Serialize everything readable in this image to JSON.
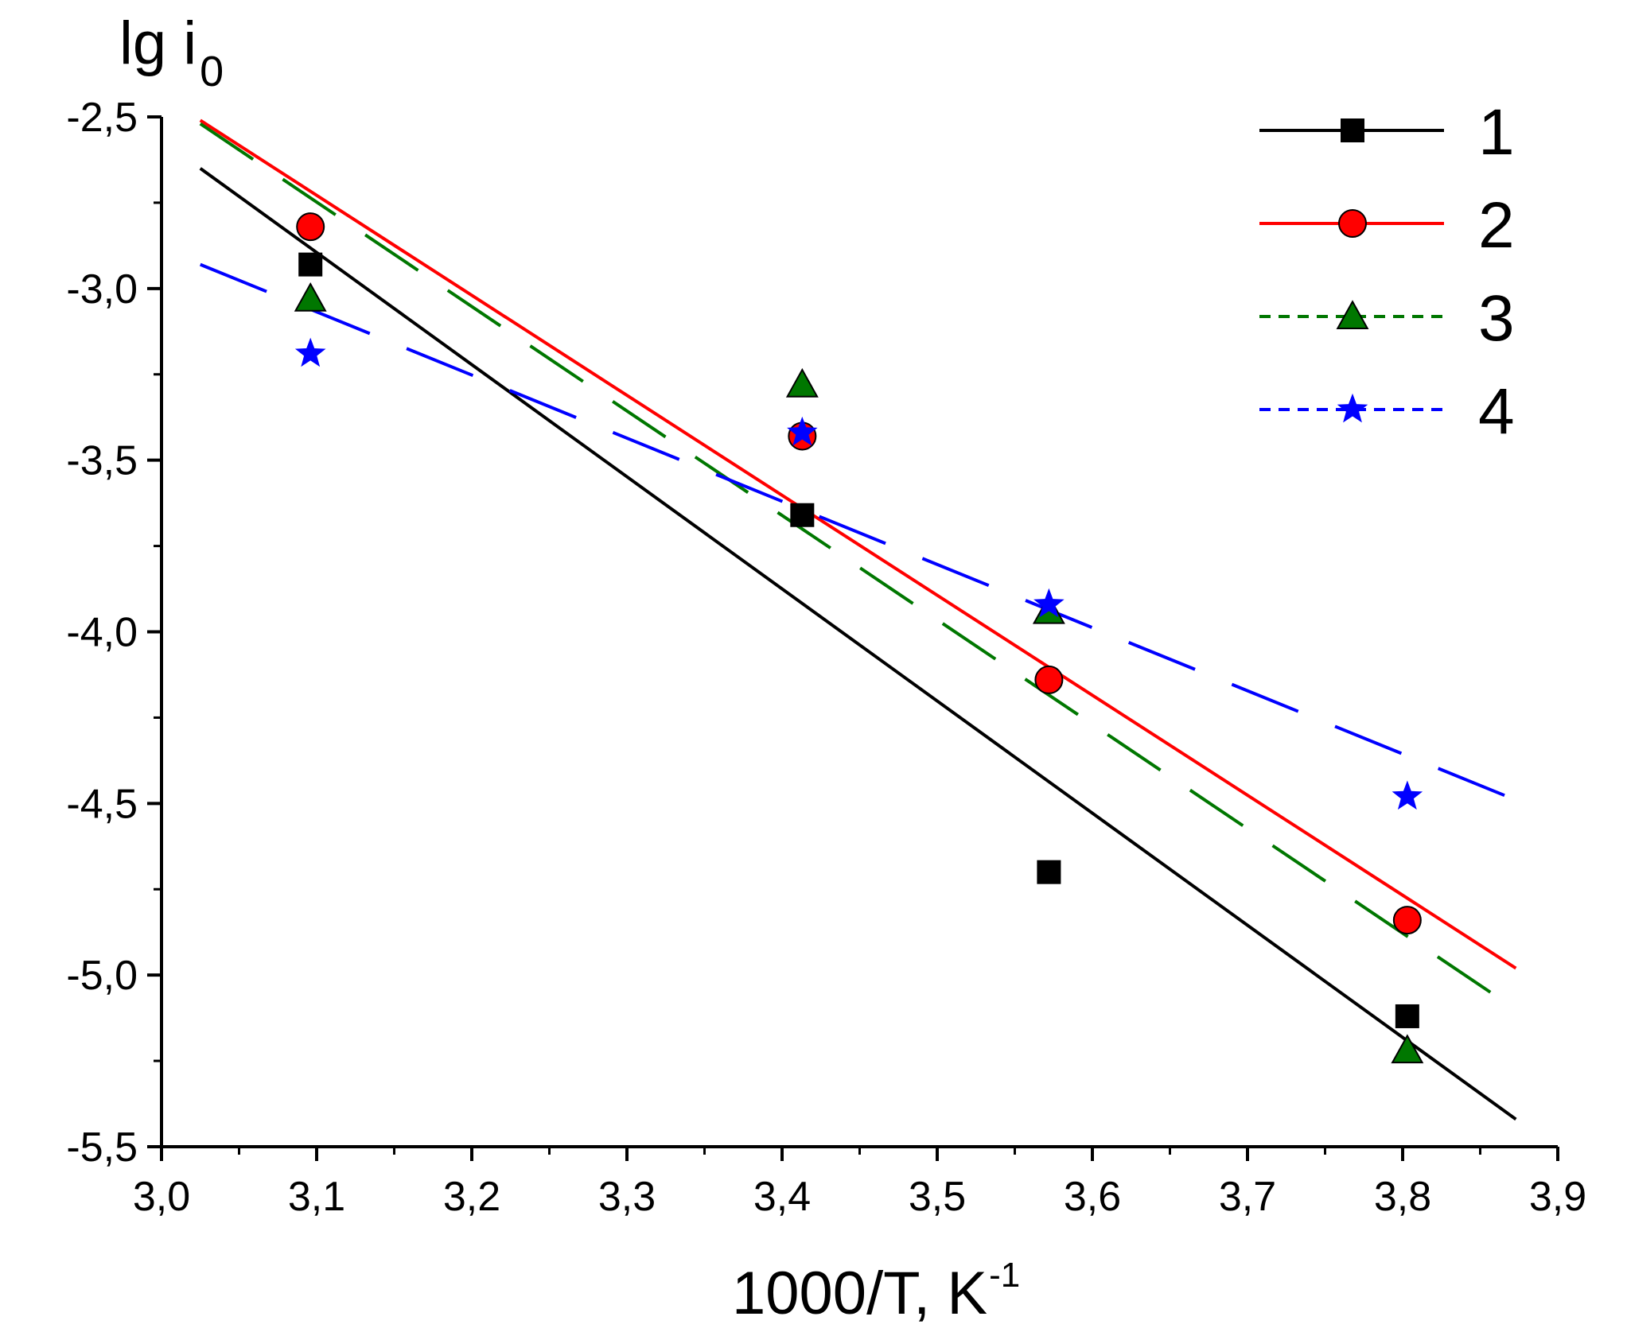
{
  "chart_data": {
    "type": "scatter",
    "xlabel": {
      "main": "1000/T, K",
      "sup": "-1"
    },
    "ylabel": {
      "main": "lg i",
      "sub": "0"
    },
    "xlim": [
      3.0,
      3.9
    ],
    "ylim": [
      -5.5,
      -2.5
    ],
    "x_ticks": [
      "3,0",
      "3,1",
      "3,2",
      "3,3",
      "3,4",
      "3,5",
      "3,6",
      "3,7",
      "3,8",
      "3,9"
    ],
    "y_ticks": [
      "-2,5",
      "-3,0",
      "-3,5",
      "-4,0",
      "-4,5",
      "-5,0",
      "-5,5"
    ],
    "grid": false,
    "legend_position": "top-right",
    "series": [
      {
        "name": "1",
        "color": "#000000",
        "marker": "square",
        "line_style": "solid",
        "points": [
          [
            3.096,
            -2.93
          ],
          [
            3.413,
            -3.66
          ],
          [
            3.572,
            -4.7
          ],
          [
            3.803,
            -5.12
          ]
        ],
        "fit": [
          [
            3.025,
            -2.65
          ],
          [
            3.873,
            -5.42
          ]
        ]
      },
      {
        "name": "2",
        "color": "#ff0000",
        "marker": "circle",
        "line_style": "solid",
        "points": [
          [
            3.096,
            -2.82
          ],
          [
            3.413,
            -3.43
          ],
          [
            3.572,
            -4.14
          ],
          [
            3.803,
            -4.84
          ]
        ],
        "fit": [
          [
            3.025,
            -2.51
          ],
          [
            3.873,
            -4.98
          ]
        ]
      },
      {
        "name": "3",
        "color": "#007700",
        "marker": "triangle",
        "line_style": "dashed",
        "points": [
          [
            3.096,
            -3.03
          ],
          [
            3.413,
            -3.28
          ],
          [
            3.572,
            -3.94
          ],
          [
            3.803,
            -5.22
          ]
        ],
        "fit": [
          [
            3.025,
            -2.52
          ],
          [
            3.873,
            -5.1
          ]
        ]
      },
      {
        "name": "4",
        "color": "#0000ff",
        "marker": "star",
        "line_style": "dashed",
        "points": [
          [
            3.096,
            -3.19
          ],
          [
            3.413,
            -3.42
          ],
          [
            3.572,
            -3.92
          ],
          [
            3.803,
            -4.48
          ]
        ],
        "fit": [
          [
            3.025,
            -2.93
          ],
          [
            3.873,
            -4.49
          ]
        ]
      }
    ]
  }
}
